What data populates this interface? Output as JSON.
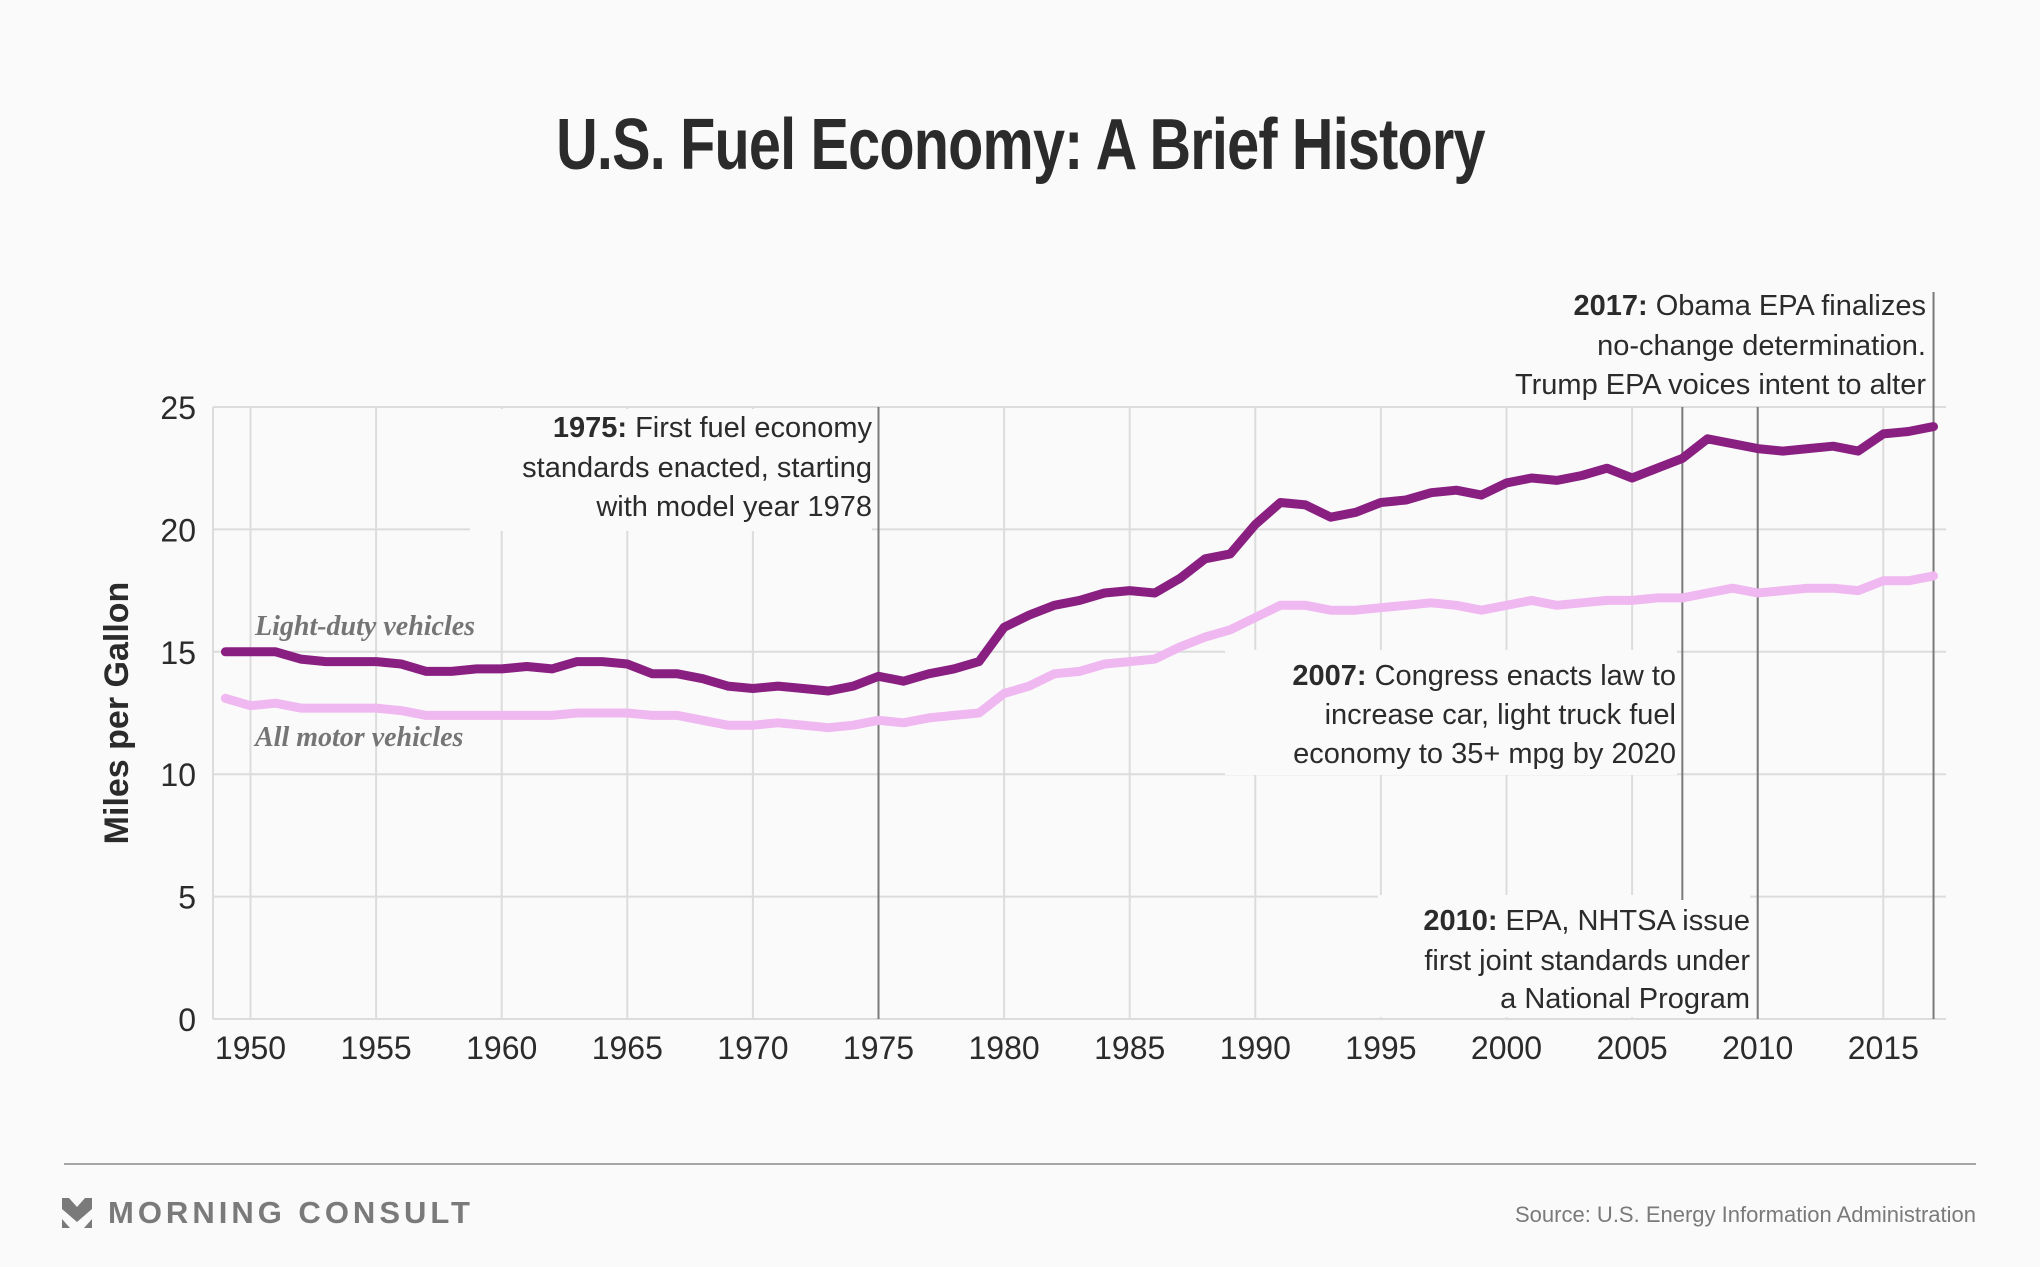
{
  "title": "U.S. Fuel Economy: A Brief History",
  "footer": {
    "brand": "MORNING CONSULT",
    "brand_icon": "morning-consult-chevron-icon",
    "source": "Source: U.S. Energy Information Administration"
  },
  "colors": {
    "light_duty": "#8a1f82",
    "all_motor": "#f0b8f0",
    "background": "#fafafa",
    "text": "#2b2b2b",
    "label_gray": "#757575"
  },
  "chart_data": {
    "type": "line",
    "title": "U.S. Fuel Economy: A Brief History",
    "xlabel": "",
    "ylabel": "Miles per Gallon",
    "xlim": [
      1949,
      2017
    ],
    "ylim": [
      0,
      25
    ],
    "xticks": [
      1950,
      1955,
      1960,
      1965,
      1970,
      1975,
      1980,
      1985,
      1990,
      1995,
      2000,
      2005,
      2010,
      2015
    ],
    "yticks": [
      0,
      5,
      10,
      15,
      20,
      25
    ],
    "grid": true,
    "legend": "inline labels at left",
    "x": [
      1949,
      1950,
      1951,
      1952,
      1953,
      1954,
      1955,
      1956,
      1957,
      1958,
      1959,
      1960,
      1961,
      1962,
      1963,
      1964,
      1965,
      1966,
      1967,
      1968,
      1969,
      1970,
      1971,
      1972,
      1973,
      1974,
      1975,
      1976,
      1977,
      1978,
      1979,
      1980,
      1981,
      1982,
      1983,
      1984,
      1985,
      1986,
      1987,
      1988,
      1989,
      1990,
      1991,
      1992,
      1993,
      1994,
      1995,
      1996,
      1997,
      1998,
      1999,
      2000,
      2001,
      2002,
      2003,
      2004,
      2005,
      2006,
      2007,
      2008,
      2009,
      2010,
      2011,
      2012,
      2013,
      2014,
      2015,
      2016,
      2017
    ],
    "series": [
      {
        "name": "Light-duty vehicles",
        "values": [
          15.0,
          15.0,
          15.0,
          14.7,
          14.6,
          14.6,
          14.6,
          14.5,
          14.2,
          14.2,
          14.3,
          14.3,
          14.4,
          14.3,
          14.6,
          14.6,
          14.5,
          14.1,
          14.1,
          13.9,
          13.6,
          13.5,
          13.6,
          13.5,
          13.4,
          13.6,
          14.0,
          13.8,
          14.1,
          14.3,
          14.6,
          16.0,
          16.5,
          16.9,
          17.1,
          17.4,
          17.5,
          17.4,
          18.0,
          18.8,
          19.0,
          20.2,
          21.1,
          21.0,
          20.5,
          20.7,
          21.1,
          21.2,
          21.5,
          21.6,
          21.4,
          21.9,
          22.1,
          22.0,
          22.2,
          22.5,
          22.1,
          22.5,
          22.9,
          23.7,
          23.5,
          23.3,
          23.2,
          23.3,
          23.4,
          23.2,
          23.9,
          24.0,
          24.2
        ]
      },
      {
        "name": "All motor vehicles",
        "values": [
          13.1,
          12.8,
          12.9,
          12.7,
          12.7,
          12.7,
          12.7,
          12.6,
          12.4,
          12.4,
          12.4,
          12.4,
          12.4,
          12.4,
          12.5,
          12.5,
          12.5,
          12.4,
          12.4,
          12.2,
          12.0,
          12.0,
          12.1,
          12.0,
          11.9,
          12.0,
          12.2,
          12.1,
          12.3,
          12.4,
          12.5,
          13.3,
          13.6,
          14.1,
          14.2,
          14.5,
          14.6,
          14.7,
          15.2,
          15.6,
          15.9,
          16.4,
          16.9,
          16.9,
          16.7,
          16.7,
          16.8,
          16.9,
          17.0,
          16.9,
          16.7,
          16.9,
          17.1,
          16.9,
          17.0,
          17.1,
          17.1,
          17.2,
          17.2,
          17.4,
          17.6,
          17.4,
          17.5,
          17.6,
          17.6,
          17.5,
          17.9,
          17.9,
          18.1
        ]
      }
    ],
    "annotations": [
      {
        "year": 1975,
        "bold": "1975:",
        "lines": [
          " First fuel economy",
          "standards enacted, starting",
          "with model year 1978"
        ]
      },
      {
        "year": 2007,
        "bold": "2007:",
        "lines": [
          " Congress enacts law to",
          "increase car, light truck fuel",
          "economy to 35+ mpg by 2020"
        ]
      },
      {
        "year": 2010,
        "bold": "2010:",
        "lines": [
          " EPA, NHTSA issue",
          "first joint standards under",
          "a National Program"
        ]
      },
      {
        "year": 2017,
        "bold": "2017:",
        "lines": [
          " Obama EPA finalizes",
          "no-change determination.",
          "Trump EPA voices intent to alter"
        ]
      }
    ]
  }
}
